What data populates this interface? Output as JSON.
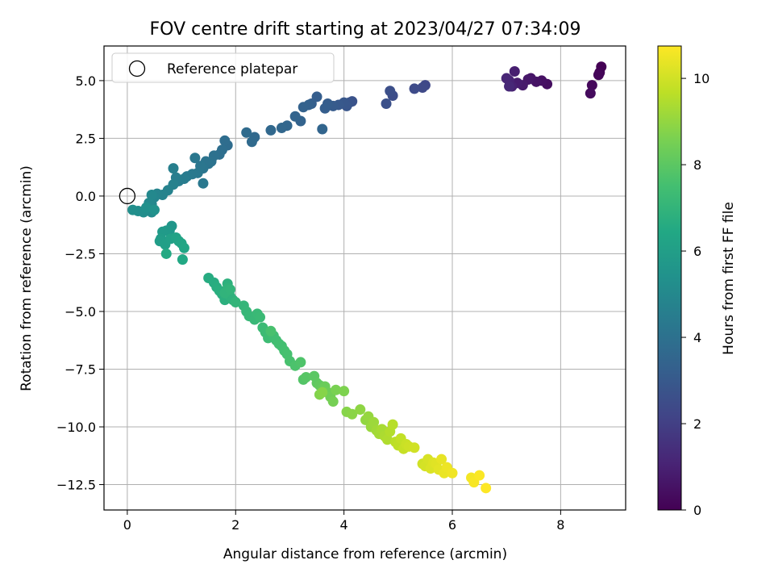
{
  "chart_data": {
    "type": "scatter",
    "title": "FOV centre drift starting at 2023/04/27 07:34:09",
    "xlabel": "Angular distance from reference (arcmin)",
    "ylabel": "Rotation from reference (arcmin)",
    "xlim": [
      -0.43,
      9.2
    ],
    "ylim": [
      -13.6,
      6.5
    ],
    "xticks": [
      0,
      2,
      4,
      6,
      8
    ],
    "yticks": [
      -12.5,
      -10.0,
      -7.5,
      -5.0,
      -2.5,
      0.0,
      2.5,
      5.0
    ],
    "xtick_labels": [
      "0",
      "2",
      "4",
      "6",
      "8"
    ],
    "ytick_labels": [
      "−12.5",
      "−10.0",
      "−7.5",
      "−5.0",
      "−2.5",
      "0.0",
      "2.5",
      "5.0"
    ],
    "grid": true,
    "legend": {
      "position": "upper-left",
      "entries": [
        {
          "label": "Reference platepar",
          "marker": "open-circle"
        }
      ]
    },
    "reference_point": {
      "x": 0,
      "y": 0
    },
    "colorbar": {
      "label": "Hours from first FF file",
      "range": [
        0,
        10.75
      ],
      "ticks": [
        0,
        2,
        4,
        6,
        8,
        10
      ],
      "tick_labels": [
        "0",
        "2",
        "4",
        "6",
        "8",
        "10"
      ],
      "colormap": "viridis"
    },
    "segments": [
      {
        "t0": 0.0,
        "t1": 0.3,
        "pts": [
          [
            8.75,
            5.6
          ],
          [
            8.72,
            5.35
          ],
          [
            8.7,
            5.25
          ],
          [
            8.58,
            4.8
          ],
          [
            8.55,
            4.45
          ]
        ]
      },
      {
        "t0": 0.4,
        "t1": 1.2,
        "pts": [
          [
            7.75,
            4.85
          ],
          [
            7.65,
            5.0
          ],
          [
            7.55,
            4.95
          ],
          [
            7.45,
            5.1
          ],
          [
            7.4,
            5.05
          ],
          [
            7.3,
            4.8
          ],
          [
            7.2,
            4.9
          ],
          [
            7.15,
            5.4
          ],
          [
            7.1,
            4.75
          ],
          [
            7.05,
            5.0
          ],
          [
            7.0,
            5.1
          ],
          [
            7.05,
            4.75
          ]
        ]
      },
      {
        "t0": 2.3,
        "t1": 3.2,
        "pts": [
          [
            5.5,
            4.8
          ],
          [
            5.45,
            4.7
          ],
          [
            5.3,
            4.65
          ],
          [
            4.9,
            4.35
          ],
          [
            4.85,
            4.55
          ],
          [
            4.78,
            4.0
          ],
          [
            4.15,
            4.1
          ],
          [
            4.1,
            4.05
          ],
          [
            4.05,
            3.9
          ],
          [
            4.0,
            4.05
          ],
          [
            3.9,
            3.95
          ],
          [
            3.8,
            3.9
          ],
          [
            3.7,
            4.0
          ],
          [
            3.65,
            3.8
          ]
        ]
      },
      {
        "t0": 3.2,
        "t1": 4.3,
        "pts": [
          [
            3.5,
            4.3
          ],
          [
            3.4,
            4.0
          ],
          [
            3.35,
            3.95
          ],
          [
            3.25,
            3.85
          ],
          [
            3.2,
            3.25
          ],
          [
            3.1,
            3.45
          ],
          [
            3.6,
            2.9
          ],
          [
            2.95,
            3.05
          ],
          [
            2.85,
            2.95
          ],
          [
            2.65,
            2.85
          ],
          [
            2.35,
            2.55
          ],
          [
            2.3,
            2.35
          ],
          [
            2.2,
            2.75
          ],
          [
            1.85,
            2.2
          ],
          [
            1.8,
            2.4
          ],
          [
            1.75,
            2.0
          ],
          [
            1.7,
            1.8
          ],
          [
            1.6,
            1.75
          ],
          [
            1.55,
            1.5
          ],
          [
            1.5,
            1.4
          ],
          [
            1.45,
            1.5
          ],
          [
            1.4,
            1.2
          ],
          [
            1.35,
            1.3
          ],
          [
            1.25,
            1.65
          ],
          [
            1.4,
            0.55
          ]
        ]
      },
      {
        "t0": 4.3,
        "t1": 5.4,
        "pts": [
          [
            1.3,
            1.0
          ],
          [
            1.2,
            0.95
          ],
          [
            1.1,
            0.85
          ],
          [
            1.05,
            0.75
          ],
          [
            0.95,
            0.65
          ],
          [
            0.9,
            0.8
          ],
          [
            0.85,
            1.2
          ],
          [
            0.85,
            0.5
          ],
          [
            0.75,
            0.25
          ],
          [
            0.65,
            0.05
          ],
          [
            0.55,
            0.1
          ],
          [
            0.5,
            -0.05
          ],
          [
            0.45,
            -0.35
          ],
          [
            0.45,
            0.05
          ],
          [
            0.4,
            -0.3
          ],
          [
            0.4,
            -0.55
          ],
          [
            0.45,
            -0.7
          ],
          [
            0.3,
            -0.7
          ],
          [
            0.2,
            -0.65
          ],
          [
            0.1,
            -0.6
          ],
          [
            0.35,
            -0.5
          ],
          [
            0.5,
            -0.6
          ]
        ]
      },
      {
        "t0": 5.6,
        "t1": 6.5,
        "pts": [
          [
            0.82,
            -1.3
          ],
          [
            0.78,
            -1.5
          ],
          [
            0.72,
            -1.5
          ],
          [
            0.65,
            -1.55
          ],
          [
            0.62,
            -1.85
          ],
          [
            0.6,
            -1.95
          ],
          [
            0.7,
            -2.1
          ],
          [
            0.8,
            -1.85
          ],
          [
            0.9,
            -1.8
          ],
          [
            0.95,
            -1.95
          ],
          [
            1.0,
            -2.05
          ],
          [
            1.05,
            -2.25
          ],
          [
            1.02,
            -2.75
          ],
          [
            0.72,
            -2.5
          ]
        ]
      },
      {
        "t0": 6.6,
        "t1": 7.6,
        "pts": [
          [
            1.5,
            -3.55
          ],
          [
            1.6,
            -3.75
          ],
          [
            1.65,
            -3.95
          ],
          [
            1.7,
            -4.1
          ],
          [
            1.75,
            -4.25
          ],
          [
            1.8,
            -4.5
          ],
          [
            1.85,
            -3.8
          ],
          [
            1.9,
            -4.35
          ],
          [
            1.95,
            -4.5
          ],
          [
            1.85,
            -4.0
          ],
          [
            1.8,
            -4.2
          ],
          [
            1.9,
            -4.05
          ],
          [
            2.0,
            -4.6
          ],
          [
            2.15,
            -4.75
          ],
          [
            2.2,
            -5.0
          ],
          [
            2.25,
            -5.2
          ],
          [
            2.35,
            -5.35
          ],
          [
            2.4,
            -5.1
          ],
          [
            2.45,
            -5.25
          ],
          [
            2.5,
            -5.7
          ],
          [
            2.55,
            -5.9
          ],
          [
            2.6,
            -6.15
          ],
          [
            2.7,
            -6.05
          ],
          [
            2.75,
            -6.25
          ],
          [
            2.8,
            -6.4
          ],
          [
            2.85,
            -6.5
          ],
          [
            2.9,
            -6.7
          ],
          [
            2.95,
            -6.85
          ],
          [
            2.65,
            -5.85
          ]
        ]
      },
      {
        "t0": 7.6,
        "t1": 8.8,
        "pts": [
          [
            3.0,
            -7.15
          ],
          [
            3.1,
            -7.35
          ],
          [
            3.2,
            -7.2
          ],
          [
            3.25,
            -7.95
          ],
          [
            3.3,
            -7.85
          ],
          [
            3.45,
            -7.8
          ],
          [
            3.5,
            -8.1
          ],
          [
            3.55,
            -8.2
          ],
          [
            3.6,
            -8.35
          ],
          [
            3.65,
            -8.25
          ],
          [
            3.7,
            -8.5
          ],
          [
            3.75,
            -8.7
          ],
          [
            3.8,
            -8.9
          ],
          [
            3.85,
            -8.4
          ],
          [
            4.0,
            -8.45
          ],
          [
            3.55,
            -8.6
          ],
          [
            3.6,
            -8.5
          ]
        ]
      },
      {
        "t0": 8.8,
        "t1": 10.0,
        "pts": [
          [
            4.05,
            -9.35
          ],
          [
            4.15,
            -9.45
          ],
          [
            4.3,
            -9.25
          ],
          [
            4.4,
            -9.7
          ],
          [
            4.45,
            -9.55
          ],
          [
            4.5,
            -10.0
          ],
          [
            4.55,
            -9.8
          ],
          [
            4.6,
            -10.15
          ],
          [
            4.65,
            -10.3
          ],
          [
            4.7,
            -10.1
          ],
          [
            4.75,
            -10.4
          ],
          [
            4.8,
            -10.55
          ],
          [
            4.85,
            -10.2
          ],
          [
            4.9,
            -9.9
          ],
          [
            4.95,
            -10.65
          ],
          [
            5.0,
            -10.8
          ],
          [
            5.05,
            -10.5
          ],
          [
            5.1,
            -10.95
          ],
          [
            5.15,
            -10.75
          ],
          [
            5.2,
            -10.85
          ],
          [
            5.3,
            -10.9
          ]
        ]
      },
      {
        "t0": 10.0,
        "t1": 10.75,
        "pts": [
          [
            5.45,
            -11.6
          ],
          [
            5.5,
            -11.7
          ],
          [
            5.55,
            -11.4
          ],
          [
            5.6,
            -11.8
          ],
          [
            5.65,
            -11.55
          ],
          [
            5.7,
            -11.6
          ],
          [
            5.75,
            -11.85
          ],
          [
            5.8,
            -11.4
          ],
          [
            5.85,
            -12.0
          ],
          [
            5.9,
            -11.75
          ],
          [
            6.0,
            -12.0
          ],
          [
            6.35,
            -12.2
          ],
          [
            6.4,
            -12.4
          ],
          [
            6.5,
            -12.1
          ],
          [
            6.62,
            -12.65
          ]
        ]
      }
    ]
  }
}
